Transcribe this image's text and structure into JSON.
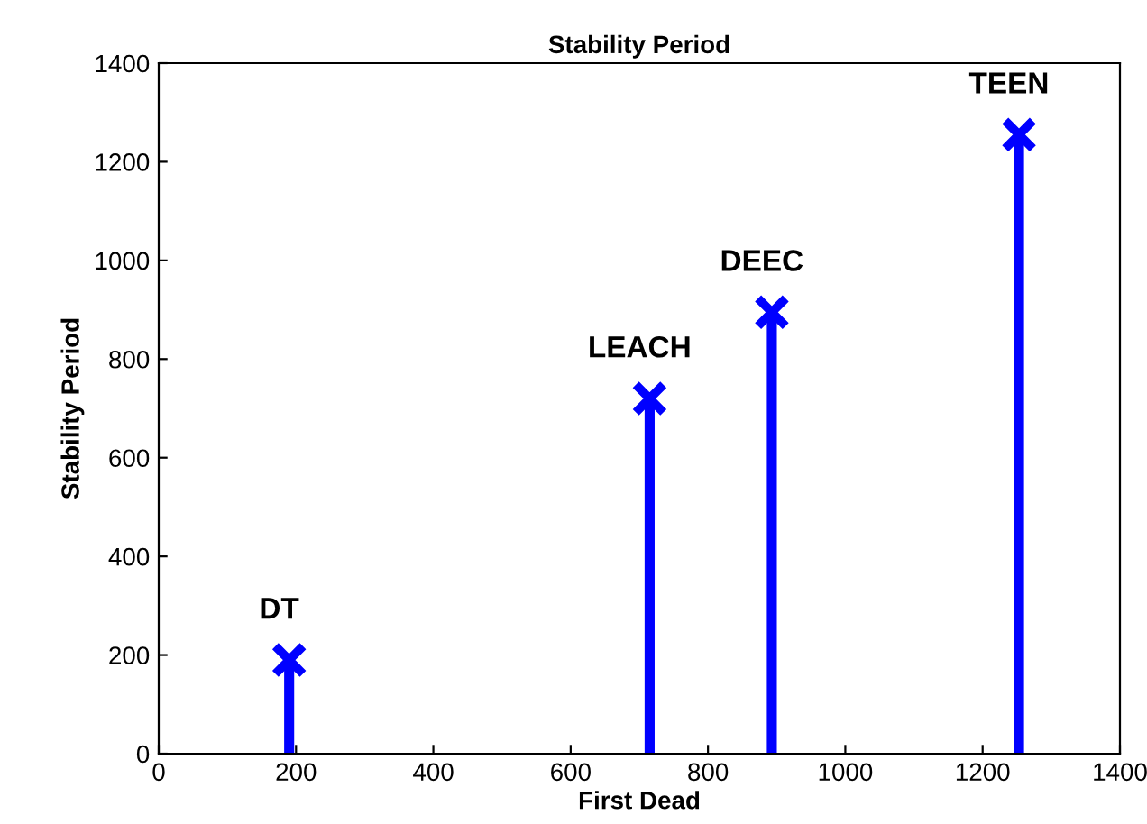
{
  "chart_data": {
    "type": "lollipop",
    "title": "Stability Period",
    "xlabel": "First Dead",
    "ylabel": "Stability Period",
    "x": [
      190,
      715,
      893,
      1253
    ],
    "series": [
      {
        "color": "#0000ff",
        "values": [
          190,
          720,
          895,
          1255
        ]
      }
    ],
    "marker": "cross",
    "xlim": [
      0,
      1400
    ],
    "xticks": [
      0,
      200,
      400,
      600,
      800,
      1000,
      1200,
      1400
    ],
    "ylim": [
      0,
      1400
    ],
    "yticks": [
      0,
      200,
      400,
      600,
      800,
      1000,
      1200,
      1400
    ],
    "grid": false,
    "annotations": [
      {
        "text": "DT",
        "x": 190,
        "y": 190
      },
      {
        "text": "LEACH",
        "x": 715,
        "y": 720
      },
      {
        "text": "DEEC",
        "x": 893,
        "y": 895
      },
      {
        "text": "TEEN",
        "x": 1253,
        "y": 1255
      }
    ]
  }
}
